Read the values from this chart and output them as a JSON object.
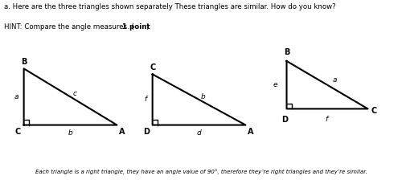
{
  "title_line1": "a. Here are the three triangles shown separately These triangles are similar. How do you know?",
  "title_line2_prefix": "HINT: Compare the angle measures. (",
  "title_line2_bold": "1 point",
  "title_line2_suffix": ")",
  "footer": "Each triangle is a right triangle, they have an angle value of 90°, therefore they’re right triangles and they’re similar.",
  "bg_color": "#ffffff",
  "text_color": "#000000",
  "t1_verts": {
    "C": [
      0.0,
      0.0
    ],
    "B": [
      0.0,
      1.0
    ],
    "A": [
      1.65,
      0.0
    ]
  },
  "t1_labels": {
    "B": [
      0.0,
      1.05,
      "B",
      "bold",
      7,
      "center",
      "bottom"
    ],
    "C": [
      -0.05,
      -0.05,
      "C",
      "bold",
      7,
      "right",
      "top"
    ],
    "b": [
      0.82,
      -0.08,
      "b",
      "italic",
      6.5,
      "center",
      "top"
    ],
    "a": [
      -0.1,
      0.5,
      "a",
      "italic",
      6.5,
      "right",
      "center"
    ],
    "c": [
      0.9,
      0.55,
      "c",
      "italic",
      6.5,
      "center",
      "center"
    ],
    "A": [
      1.68,
      -0.05,
      "A",
      "bold",
      7,
      "left",
      "top"
    ]
  },
  "t2_verts": {
    "C": [
      0.0,
      0.9
    ],
    "D": [
      0.0,
      0.0
    ],
    "A": [
      1.65,
      0.0
    ]
  },
  "t2_labels": {
    "C": [
      0.0,
      0.95,
      "C",
      "bold",
      7,
      "center",
      "bottom"
    ],
    "D": [
      -0.05,
      -0.05,
      "D",
      "bold",
      7,
      "right",
      "top"
    ],
    "d": [
      0.82,
      -0.08,
      "d",
      "italic",
      6.5,
      "center",
      "top"
    ],
    "f": [
      -0.1,
      0.45,
      "f",
      "italic",
      6.5,
      "right",
      "center"
    ],
    "b": [
      0.9,
      0.5,
      "b",
      "italic",
      6.5,
      "center",
      "center"
    ],
    "A": [
      1.68,
      -0.05,
      "A",
      "bold",
      7,
      "left",
      "top"
    ]
  },
  "t3_verts": {
    "B": [
      0.0,
      0.5
    ],
    "D": [
      0.0,
      0.0
    ],
    "C": [
      0.85,
      0.0
    ]
  },
  "t3_labels": {
    "B": [
      0.0,
      0.55,
      "B",
      "bold",
      7,
      "center",
      "bottom"
    ],
    "e": [
      -0.1,
      0.25,
      "e",
      "italic",
      6.5,
      "right",
      "center"
    ],
    "D": [
      -0.02,
      -0.07,
      "D",
      "bold",
      7,
      "center",
      "top"
    ],
    "f": [
      0.42,
      -0.07,
      "f",
      "italic",
      6.5,
      "center",
      "top"
    ],
    "C": [
      0.88,
      -0.02,
      "C",
      "bold",
      7,
      "left",
      "center"
    ],
    "a": [
      0.5,
      0.3,
      "a",
      "italic",
      6.5,
      "center",
      "center"
    ]
  }
}
